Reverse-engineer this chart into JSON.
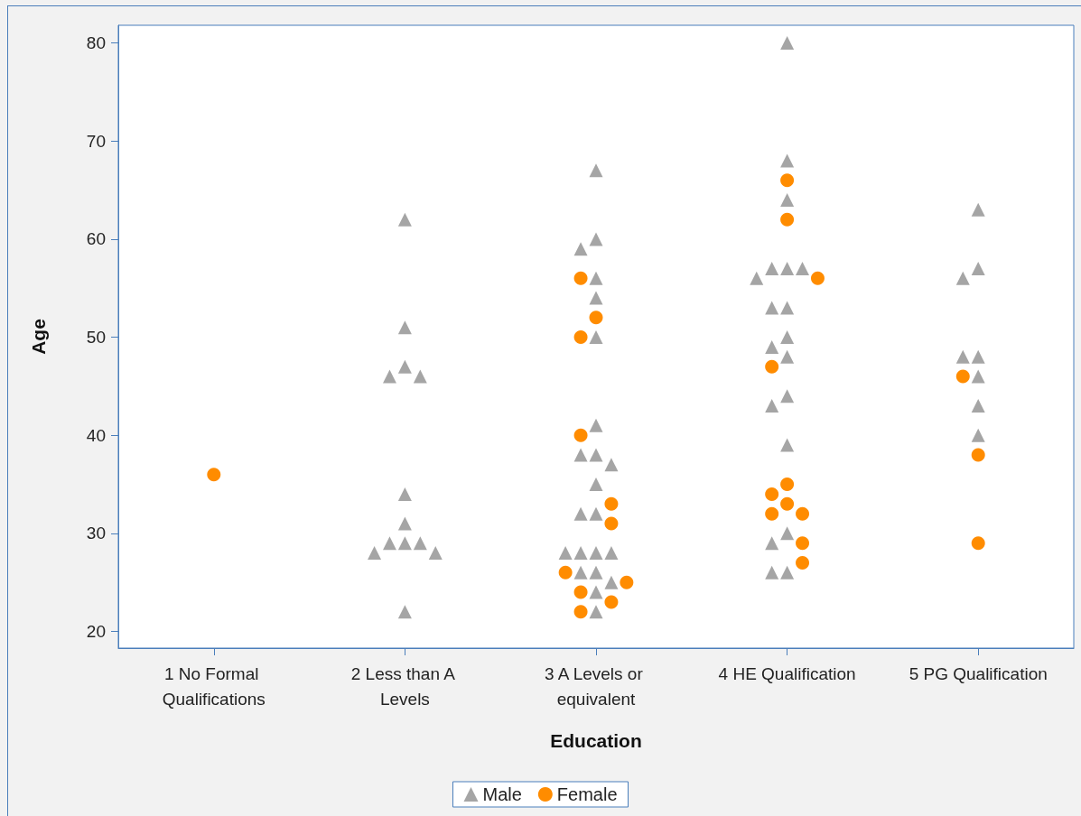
{
  "chart_data": {
    "type": "scatter",
    "xlabel": "Education",
    "ylabel": "Age",
    "categories": [
      "1 No Formal Qualifications",
      "2 Less than A Levels",
      "3 A Levels or equivalent",
      "4 HE Qualification",
      "5 PG Qualification"
    ],
    "series": [
      {
        "name": "Male",
        "color": "#a5a5a5",
        "marker": "triangle",
        "x": [
          "2 Less than A Levels",
          "2 Less than A Levels",
          "2 Less than A Levels",
          "2 Less than A Levels",
          "2 Less than A Levels",
          "2 Less than A Levels",
          "2 Less than A Levels",
          "2 Less than A Levels",
          "2 Less than A Levels",
          "2 Less than A Levels",
          "2 Less than A Levels",
          "2 Less than A Levels",
          "2 Less than A Levels",
          "3 A Levels or equivalent",
          "3 A Levels or equivalent",
          "3 A Levels or equivalent",
          "3 A Levels or equivalent",
          "3 A Levels or equivalent",
          "3 A Levels or equivalent",
          "3 A Levels or equivalent",
          "3 A Levels or equivalent",
          "3 A Levels or equivalent",
          "3 A Levels or equivalent",
          "3 A Levels or equivalent",
          "3 A Levels or equivalent",
          "3 A Levels or equivalent",
          "3 A Levels or equivalent",
          "3 A Levels or equivalent",
          "3 A Levels or equivalent",
          "3 A Levels or equivalent",
          "3 A Levels or equivalent",
          "3 A Levels or equivalent",
          "3 A Levels or equivalent",
          "3 A Levels or equivalent",
          "3 A Levels or equivalent",
          "4 HE Qualification",
          "4 HE Qualification",
          "4 HE Qualification",
          "4 HE Qualification",
          "4 HE Qualification",
          "4 HE Qualification",
          "4 HE Qualification",
          "4 HE Qualification",
          "4 HE Qualification",
          "4 HE Qualification",
          "4 HE Qualification",
          "4 HE Qualification",
          "4 HE Qualification",
          "4 HE Qualification",
          "4 HE Qualification",
          "4 HE Qualification",
          "4 HE Qualification",
          "4 HE Qualification",
          "4 HE Qualification",
          "5 PG Qualification",
          "5 PG Qualification",
          "5 PG Qualification",
          "5 PG Qualification",
          "5 PG Qualification",
          "5 PG Qualification",
          "5 PG Qualification",
          "5 PG Qualification"
        ],
        "values": [
          62,
          51,
          47,
          46,
          46,
          34,
          31,
          29,
          29,
          29,
          28,
          28,
          22,
          67,
          60,
          59,
          56,
          54,
          50,
          41,
          38,
          38,
          37,
          35,
          32,
          32,
          28,
          28,
          28,
          28,
          26,
          26,
          25,
          24,
          22,
          80,
          68,
          64,
          57,
          57,
          57,
          56,
          53,
          53,
          50,
          49,
          48,
          44,
          43,
          39,
          30,
          29,
          26,
          26,
          63,
          57,
          56,
          48,
          48,
          46,
          43,
          40
        ]
      },
      {
        "name": "Female",
        "color": "#ff8c00",
        "marker": "circle",
        "x": [
          "1 No Formal Qualifications",
          "3 A Levels or equivalent",
          "3 A Levels or equivalent",
          "3 A Levels or equivalent",
          "3 A Levels or equivalent",
          "3 A Levels or equivalent",
          "3 A Levels or equivalent",
          "3 A Levels or equivalent",
          "3 A Levels or equivalent",
          "3 A Levels or equivalent",
          "3 A Levels or equivalent",
          "3 A Levels or equivalent",
          "4 HE Qualification",
          "4 HE Qualification",
          "4 HE Qualification",
          "4 HE Qualification",
          "4 HE Qualification",
          "4 HE Qualification",
          "4 HE Qualification",
          "4 HE Qualification",
          "4 HE Qualification",
          "4 HE Qualification",
          "4 HE Qualification",
          "5 PG Qualification",
          "5 PG Qualification",
          "5 PG Qualification"
        ],
        "values": [
          36,
          56,
          52,
          50,
          40,
          33,
          31,
          26,
          25,
          24,
          23,
          22,
          66,
          62,
          56,
          47,
          35,
          34,
          33,
          32,
          32,
          29,
          27,
          46,
          38,
          29
        ]
      }
    ],
    "ylim": [
      18.3,
      81.8
    ],
    "yticks": [
      20,
      30,
      40,
      50,
      60,
      70,
      80
    ],
    "grid": false,
    "legend": "bottom"
  }
}
